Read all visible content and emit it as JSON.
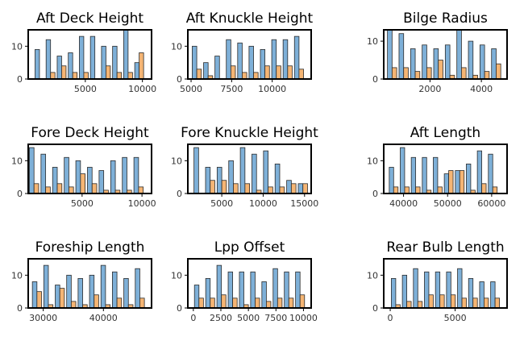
{
  "colors": {
    "series_a": "#7eb0d8",
    "series_b": "#f5b574",
    "edge": "#2b2b2b",
    "frame": "#000000"
  },
  "chart_data": [
    {
      "type": "bar",
      "title": "Aft Deck Height",
      "xlim": [
        0,
        10800
      ],
      "ylim": [
        0,
        15
      ],
      "xticks": [
        5000,
        10000
      ],
      "yticks": [
        0,
        10
      ],
      "bin_edges": [
        500,
        1470,
        2440,
        3410,
        4380,
        5350,
        6320,
        7290,
        8260,
        9230,
        10200
      ],
      "series": [
        {
          "values": [
            9,
            12,
            7,
            8,
            13,
            13,
            10,
            10,
            15,
            5
          ]
        },
        {
          "values": [
            0,
            2,
            4,
            2,
            2,
            0,
            4,
            2,
            2,
            8
          ]
        }
      ]
    },
    {
      "type": "bar",
      "title": "Aft Knuckle Height",
      "xlim": [
        4800,
        12400
      ],
      "ylim": [
        0,
        15
      ],
      "xticks": [
        5000,
        7500,
        10000
      ],
      "yticks": [
        0,
        10
      ],
      "bin_edges": [
        5000,
        5700,
        6400,
        7100,
        7800,
        8500,
        9200,
        9900,
        10600,
        11300,
        12000
      ],
      "series": [
        {
          "values": [
            10,
            5,
            7,
            12,
            11,
            10,
            9,
            12,
            12,
            13
          ]
        },
        {
          "values": [
            3,
            1,
            0,
            4,
            2,
            2,
            4,
            4,
            4,
            3
          ]
        }
      ]
    },
    {
      "type": "bar",
      "title": "Bilge Radius",
      "xlim": [
        200,
        5000
      ],
      "ylim": [
        0,
        13
      ],
      "xticks": [
        2000,
        4000
      ],
      "yticks": [
        0,
        10
      ],
      "bin_edges": [
        300,
        750,
        1200,
        1650,
        2100,
        2550,
        3000,
        3450,
        3900,
        4350,
        4800
      ],
      "series": [
        {
          "values": [
            13,
            12,
            8,
            9,
            8,
            9,
            13,
            10,
            9,
            8
          ]
        },
        {
          "values": [
            3,
            3,
            2,
            3,
            5,
            1,
            3,
            1,
            2,
            4
          ]
        }
      ]
    },
    {
      "type": "bar",
      "title": "Fore Deck Height",
      "xlim": [
        500,
        10800
      ],
      "ylim": [
        0,
        15
      ],
      "xticks": [
        5000,
        10000
      ],
      "yticks": [
        0,
        10
      ],
      "bin_edges": [
        500,
        1470,
        2440,
        3410,
        4380,
        5350,
        6320,
        7290,
        8260,
        9230,
        10200
      ],
      "series": [
        {
          "values": [
            14,
            12,
            8,
            11,
            10,
            8,
            7,
            10,
            11,
            11
          ]
        },
        {
          "values": [
            3,
            2,
            3,
            2,
            6,
            3,
            1,
            1,
            1,
            2
          ]
        }
      ]
    },
    {
      "type": "bar",
      "title": "Fore Knuckle Height",
      "xlim": [
        900,
        15800
      ],
      "ylim": [
        0,
        15
      ],
      "xticks": [
        5000,
        10000,
        15000
      ],
      "yticks": [
        0,
        10
      ],
      "bin_edges": [
        1500,
        2900,
        4300,
        5700,
        7100,
        8500,
        9900,
        11300,
        12700,
        14100,
        15500
      ],
      "series": [
        {
          "values": [
            14,
            8,
            8,
            10,
            14,
            12,
            13,
            9,
            4,
            3
          ]
        },
        {
          "values": [
            0,
            4,
            4,
            3,
            3,
            1,
            2,
            2,
            3,
            3
          ]
        }
      ]
    },
    {
      "type": "bar",
      "title": "Aft Length",
      "xlim": [
        35500,
        63500
      ],
      "ylim": [
        0,
        15
      ],
      "xticks": [
        40000,
        50000,
        60000
      ],
      "yticks": [
        0,
        10
      ],
      "bin_edges": [
        36500,
        39000,
        41500,
        44000,
        46500,
        49000,
        51500,
        54000,
        56500,
        59000,
        61500
      ],
      "series": [
        {
          "values": [
            8,
            14,
            11,
            11,
            11,
            6,
            7,
            9,
            13,
            12
          ]
        },
        {
          "values": [
            2,
            2,
            2,
            1,
            2,
            7,
            7,
            1,
            3,
            2
          ]
        }
      ]
    },
    {
      "type": "bar",
      "title": "Foreship Length",
      "xlim": [
        27500,
        48000
      ],
      "ylim": [
        0,
        15
      ],
      "xticks": [
        30000,
        40000
      ],
      "yticks": [
        0,
        10
      ],
      "bin_edges": [
        28000,
        29900,
        31800,
        33700,
        35600,
        37500,
        39400,
        41300,
        43200,
        45100,
        47000
      ],
      "series": [
        {
          "values": [
            8,
            13,
            7,
            10,
            9,
            10,
            13,
            11,
            9,
            12
          ]
        },
        {
          "values": [
            5,
            1,
            6,
            2,
            1,
            4,
            1,
            3,
            1,
            3
          ]
        }
      ]
    },
    {
      "type": "bar",
      "title": "Lpp Offset",
      "xlim": [
        -500,
        10700
      ],
      "ylim": [
        0,
        15
      ],
      "xticks": [
        0,
        2500,
        5000,
        7500,
        10000
      ],
      "yticks": [
        0,
        10
      ],
      "bin_edges": [
        0,
        1020,
        2040,
        3060,
        4080,
        5100,
        6120,
        7140,
        8160,
        9180,
        10200
      ],
      "series": [
        {
          "values": [
            7,
            9,
            13,
            11,
            11,
            11,
            8,
            12,
            11,
            11
          ]
        },
        {
          "values": [
            3,
            3,
            4,
            3,
            1,
            3,
            2,
            3,
            3,
            4
          ]
        }
      ]
    },
    {
      "type": "bar",
      "title": "Rear Bulb Length",
      "xlim": [
        -500,
        9000
      ],
      "ylim": [
        0,
        15
      ],
      "xticks": [
        0,
        5000
      ],
      "yticks": [
        0,
        10
      ],
      "bin_edges": [
        0,
        850,
        1700,
        2550,
        3400,
        4250,
        5100,
        5950,
        6800,
        7650,
        8500
      ],
      "series": [
        {
          "values": [
            9,
            10,
            12,
            11,
            11,
            11,
            12,
            9,
            8,
            8
          ]
        },
        {
          "values": [
            1,
            2,
            2,
            4,
            4,
            4,
            3,
            3,
            3,
            3
          ]
        }
      ]
    }
  ]
}
